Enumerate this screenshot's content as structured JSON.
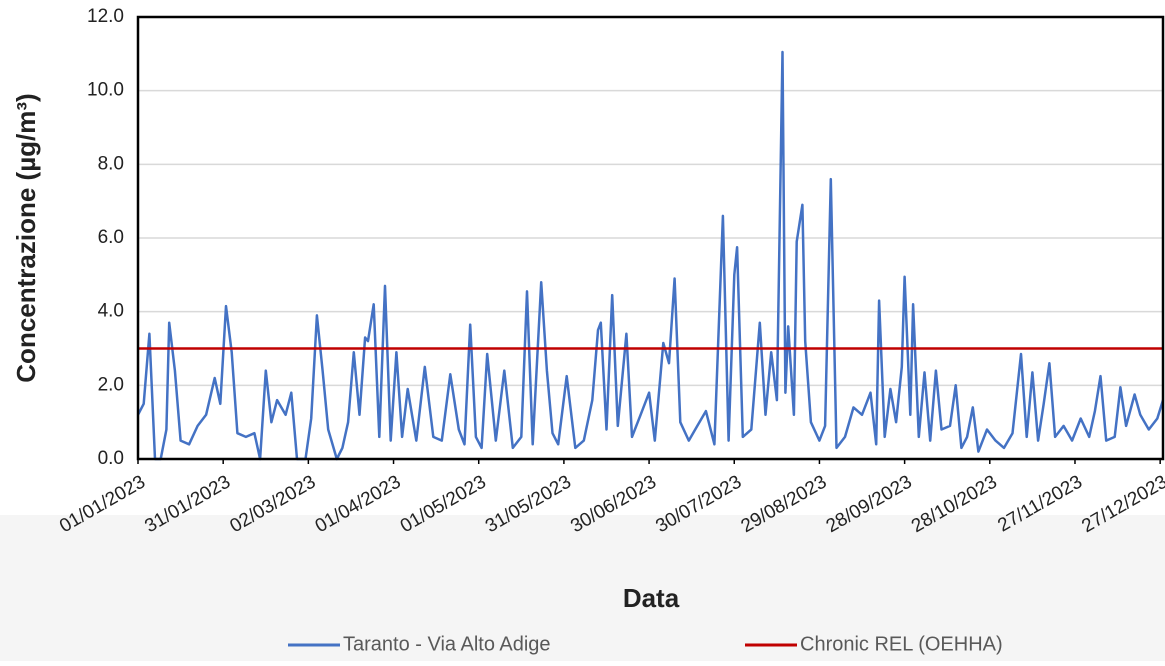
{
  "chart_data": {
    "type": "line",
    "title_y": "Concentrazione (µg/m³)",
    "title_x": "Data",
    "x": [
      "01/01/2023",
      "03/01/2023",
      "05/01/2023",
      "07/01/2023",
      "09/01/2023",
      "11/01/2023",
      "12/01/2023",
      "14/01/2023",
      "16/01/2023",
      "19/01/2023",
      "22/01/2023",
      "25/01/2023",
      "28/01/2023",
      "30/01/2023",
      "01/02/2023",
      "03/02/2023",
      "05/02/2023",
      "08/02/2023",
      "11/02/2023",
      "13/02/2023",
      "15/02/2023",
      "17/02/2023",
      "19/02/2023",
      "22/02/2023",
      "24/02/2023",
      "26/02/2023",
      "01/03/2023",
      "03/03/2023",
      "05/03/2023",
      "07/03/2023",
      "09/03/2023",
      "12/03/2023",
      "14/03/2023",
      "16/03/2023",
      "18/03/2023",
      "20/03/2023",
      "22/03/2023",
      "23/03/2023",
      "25/03/2023",
      "27/03/2023",
      "29/03/2023",
      "31/03/2023",
      "02/04/2023",
      "04/04/2023",
      "06/04/2023",
      "09/04/2023",
      "12/04/2023",
      "15/04/2023",
      "18/04/2023",
      "21/04/2023",
      "24/04/2023",
      "26/04/2023",
      "28/04/2023",
      "30/04/2023",
      "02/05/2023",
      "04/05/2023",
      "07/05/2023",
      "10/05/2023",
      "13/05/2023",
      "16/05/2023",
      "18/05/2023",
      "20/05/2023",
      "23/05/2023",
      "25/05/2023",
      "27/05/2023",
      "29/05/2023",
      "01/06/2023",
      "04/06/2023",
      "07/06/2023",
      "10/06/2023",
      "12/06/2023",
      "13/06/2023",
      "15/06/2023",
      "17/06/2023",
      "19/06/2023",
      "22/06/2023",
      "24/06/2023",
      "27/06/2023",
      "30/06/2023",
      "02/07/2023",
      "05/07/2023",
      "07/07/2023",
      "09/07/2023",
      "11/07/2023",
      "14/07/2023",
      "17/07/2023",
      "20/07/2023",
      "23/07/2023",
      "26/07/2023",
      "28/07/2023",
      "30/07/2023",
      "31/07/2023",
      "02/08/2023",
      "05/08/2023",
      "08/08/2023",
      "10/08/2023",
      "12/08/2023",
      "14/08/2023",
      "16/08/2023",
      "17/08/2023",
      "18/08/2023",
      "20/08/2023",
      "21/08/2023",
      "23/08/2023",
      "24/08/2023",
      "26/08/2023",
      "29/08/2023",
      "31/08/2023",
      "02/09/2023",
      "04/09/2023",
      "07/09/2023",
      "10/09/2023",
      "13/09/2023",
      "16/09/2023",
      "18/09/2023",
      "19/09/2023",
      "21/09/2023",
      "23/09/2023",
      "25/09/2023",
      "27/09/2023",
      "28/09/2023",
      "30/09/2023",
      "01/10/2023",
      "03/10/2023",
      "05/10/2023",
      "07/10/2023",
      "09/10/2023",
      "11/10/2023",
      "14/10/2023",
      "16/10/2023",
      "18/10/2023",
      "20/10/2023",
      "22/10/2023",
      "24/10/2023",
      "27/10/2023",
      "30/10/2023",
      "02/11/2023",
      "05/11/2023",
      "08/11/2023",
      "10/11/2023",
      "12/11/2023",
      "14/11/2023",
      "16/11/2023",
      "18/11/2023",
      "20/11/2023",
      "23/11/2023",
      "26/11/2023",
      "29/11/2023",
      "02/12/2023",
      "04/12/2023",
      "06/12/2023",
      "08/12/2023",
      "11/12/2023",
      "13/12/2023",
      "15/12/2023",
      "18/12/2023",
      "20/12/2023",
      "23/12/2023",
      "26/12/2023",
      "28/12/2023"
    ],
    "series": [
      {
        "name": "Taranto - Via Alto Adige",
        "color": "#4472c4",
        "values": [
          1.2,
          1.5,
          3.4,
          0.0,
          0.0,
          0.8,
          3.7,
          2.4,
          0.5,
          0.4,
          0.9,
          1.2,
          2.2,
          1.5,
          4.15,
          2.9,
          0.7,
          0.6,
          0.7,
          0.0,
          2.4,
          1.0,
          1.6,
          1.2,
          1.8,
          0.0,
          0.0,
          1.1,
          3.9,
          2.4,
          0.8,
          0.0,
          0.3,
          1.0,
          2.9,
          1.2,
          3.3,
          3.2,
          4.2,
          0.6,
          4.7,
          0.5,
          2.9,
          0.6,
          1.9,
          0.5,
          2.5,
          0.6,
          0.5,
          2.3,
          0.8,
          0.4,
          3.65,
          0.6,
          0.3,
          2.85,
          0.5,
          2.4,
          0.3,
          0.6,
          4.55,
          0.4,
          4.8,
          2.4,
          0.7,
          0.4,
          2.25,
          0.3,
          0.5,
          1.6,
          3.5,
          3.7,
          0.8,
          4.45,
          0.9,
          3.4,
          0.6,
          1.2,
          1.8,
          0.5,
          3.15,
          2.6,
          4.9,
          1.0,
          0.5,
          0.9,
          1.3,
          0.4,
          6.6,
          0.5,
          5.0,
          5.75,
          0.6,
          0.8,
          3.7,
          1.2,
          2.9,
          1.6,
          11.05,
          1.8,
          3.6,
          1.2,
          5.9,
          6.9,
          3.2,
          1.0,
          0.5,
          0.9,
          7.6,
          0.3,
          0.6,
          1.4,
          1.2,
          1.8,
          0.4,
          4.3,
          0.6,
          1.9,
          1.0,
          2.5,
          4.95,
          1.2,
          4.2,
          0.6,
          2.35,
          0.5,
          2.4,
          0.8,
          0.9,
          2.0,
          0.3,
          0.6,
          1.4,
          0.2,
          0.8,
          0.5,
          0.3,
          0.7,
          2.85,
          0.6,
          2.35,
          0.5,
          1.5,
          2.6,
          0.6,
          0.9,
          0.5,
          1.1,
          0.6,
          1.3,
          2.25,
          0.5,
          0.6,
          1.95,
          0.9,
          1.75,
          1.2,
          0.8,
          1.1,
          1.6
        ]
      }
    ],
    "reference_lines": [
      {
        "name": "Chronic REL (OEHHA)",
        "value": 3,
        "color": "#c00000"
      }
    ],
    "xlim": [
      "01/01/2023",
      "28/12/2023"
    ],
    "xticks": [
      "01/01/2023",
      "31/01/2023",
      "02/03/2023",
      "01/04/2023",
      "01/05/2023",
      "31/05/2023",
      "30/06/2023",
      "30/07/2023",
      "29/08/2023",
      "28/09/2023",
      "28/10/2023",
      "27/11/2023",
      "27/12/2023"
    ],
    "ylim": [
      0,
      12
    ],
    "yticks": [
      {
        "value": 0,
        "label": "0.0"
      },
      {
        "value": 2,
        "label": "2.0"
      },
      {
        "value": 4,
        "label": "4.0"
      },
      {
        "value": 6,
        "label": "6.0"
      },
      {
        "value": 8,
        "label": "8.0"
      },
      {
        "value": 10,
        "label": "10.0"
      },
      {
        "value": 12,
        "label": "12.0"
      }
    ],
    "grid": true,
    "legend": "bottom"
  }
}
